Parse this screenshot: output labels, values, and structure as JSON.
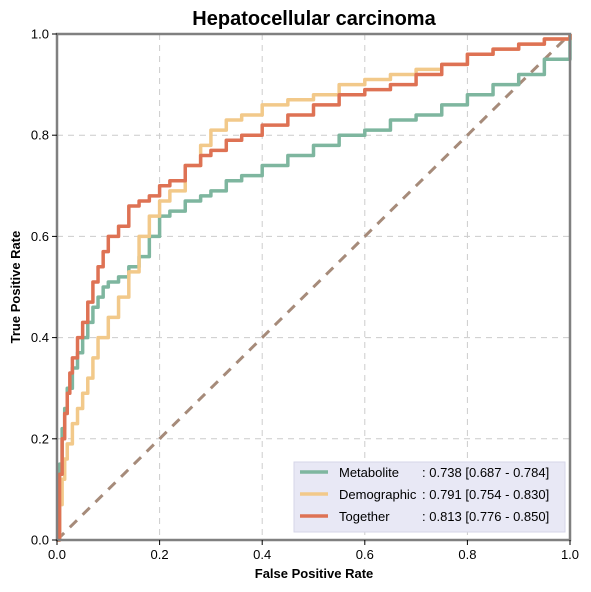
{
  "chart_data": {
    "type": "line",
    "title": "Hepatocellular carcinoma",
    "xlabel": "False Positive Rate",
    "ylabel": "True Positive Rate",
    "xlim": [
      0,
      1
    ],
    "ylim": [
      0,
      1
    ],
    "xticks": [
      "0.0",
      "0.2",
      "0.4",
      "0.6",
      "0.8",
      "1.0"
    ],
    "yticks": [
      "0.0",
      "0.2",
      "0.4",
      "0.6",
      "0.8",
      "1.0"
    ],
    "grid": true,
    "legend_position": "bottom-right",
    "series": [
      {
        "name": "Metabolite",
        "legend_name": "Metabolite",
        "legend_value": ": 0.738 [0.687 - 0.784]",
        "color": "#7eb69f",
        "x": [
          0,
          0.005,
          0.01,
          0.015,
          0.02,
          0.03,
          0.04,
          0.05,
          0.06,
          0.07,
          0.08,
          0.09,
          0.1,
          0.12,
          0.14,
          0.16,
          0.18,
          0.2,
          0.22,
          0.25,
          0.28,
          0.3,
          0.33,
          0.36,
          0.4,
          0.45,
          0.5,
          0.55,
          0.6,
          0.65,
          0.7,
          0.75,
          0.8,
          0.85,
          0.9,
          0.95,
          1.0
        ],
        "y": [
          0,
          0.15,
          0.22,
          0.26,
          0.3,
          0.34,
          0.37,
          0.4,
          0.43,
          0.46,
          0.48,
          0.5,
          0.51,
          0.52,
          0.54,
          0.56,
          0.6,
          0.64,
          0.65,
          0.67,
          0.68,
          0.69,
          0.71,
          0.72,
          0.74,
          0.76,
          0.78,
          0.8,
          0.81,
          0.83,
          0.84,
          0.86,
          0.88,
          0.9,
          0.92,
          0.95,
          1.0
        ]
      },
      {
        "name": "Demographic",
        "legend_name": "Demographic",
        "legend_value": ": 0.791 [0.754 - 0.830]",
        "color": "#f2c98a",
        "x": [
          0,
          0.005,
          0.01,
          0.015,
          0.02,
          0.03,
          0.04,
          0.05,
          0.06,
          0.07,
          0.08,
          0.1,
          0.12,
          0.14,
          0.16,
          0.18,
          0.2,
          0.22,
          0.25,
          0.28,
          0.3,
          0.33,
          0.36,
          0.4,
          0.45,
          0.5,
          0.55,
          0.6,
          0.65,
          0.7,
          0.75,
          0.8,
          0.85,
          0.9,
          0.95,
          1.0
        ],
        "y": [
          0,
          0.07,
          0.12,
          0.16,
          0.19,
          0.23,
          0.26,
          0.29,
          0.32,
          0.36,
          0.4,
          0.44,
          0.48,
          0.53,
          0.6,
          0.64,
          0.67,
          0.69,
          0.74,
          0.78,
          0.81,
          0.83,
          0.84,
          0.86,
          0.87,
          0.88,
          0.9,
          0.91,
          0.92,
          0.93,
          0.94,
          0.96,
          0.97,
          0.98,
          0.99,
          1.0
        ]
      },
      {
        "name": "Together",
        "legend_name": "Together",
        "legend_value": ": 0.813 [0.776 - 0.850]",
        "color": "#de7254",
        "x": [
          0,
          0.005,
          0.01,
          0.015,
          0.02,
          0.025,
          0.03,
          0.04,
          0.05,
          0.06,
          0.07,
          0.08,
          0.09,
          0.1,
          0.12,
          0.14,
          0.16,
          0.18,
          0.2,
          0.22,
          0.25,
          0.28,
          0.3,
          0.33,
          0.36,
          0.4,
          0.45,
          0.5,
          0.55,
          0.6,
          0.65,
          0.7,
          0.75,
          0.8,
          0.85,
          0.9,
          0.95,
          1.0
        ],
        "y": [
          0,
          0.13,
          0.2,
          0.25,
          0.29,
          0.33,
          0.36,
          0.4,
          0.43,
          0.47,
          0.51,
          0.54,
          0.57,
          0.6,
          0.62,
          0.66,
          0.67,
          0.68,
          0.7,
          0.71,
          0.74,
          0.76,
          0.77,
          0.79,
          0.8,
          0.82,
          0.84,
          0.86,
          0.88,
          0.89,
          0.9,
          0.92,
          0.94,
          0.96,
          0.97,
          0.98,
          0.99,
          1.0
        ]
      }
    ],
    "diagonal": {
      "x": [
        0,
        1
      ],
      "y": [
        0,
        1
      ],
      "color": "#a68b7a",
      "style": "dashed"
    },
    "legend_box_color": "#e8e8f5",
    "axis_color": "#808080"
  }
}
